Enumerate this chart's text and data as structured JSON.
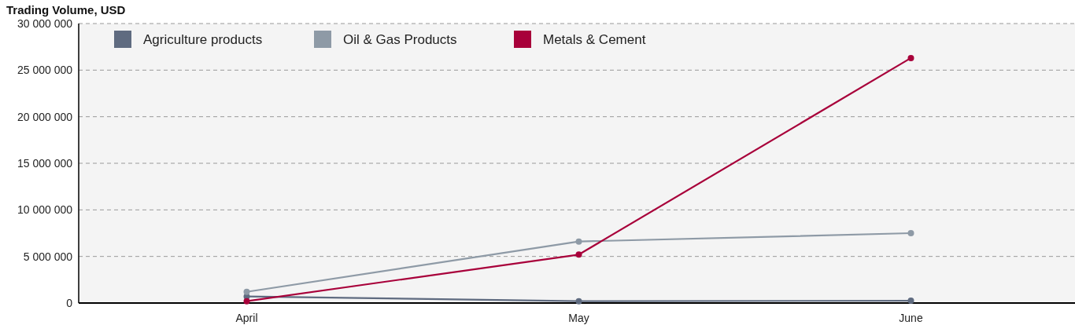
{
  "chart_data": {
    "type": "line",
    "title": "Trading Volume, USD",
    "categories": [
      "April",
      "May",
      "June"
    ],
    "series": [
      {
        "name": "Agriculture products",
        "color": "#5f6b80",
        "values": [
          700000,
          200000,
          250000
        ]
      },
      {
        "name": "Oil & Gas Products",
        "color": "#8e9aa6",
        "values": [
          1200000,
          6600000,
          7500000
        ]
      },
      {
        "name": "Metals & Cement",
        "color": "#a8003a",
        "values": [
          200000,
          5200000,
          26300000
        ]
      }
    ],
    "ylim": [
      0,
      30000000
    ],
    "yticks": [
      {
        "value": 0,
        "label": "0"
      },
      {
        "value": 5000000,
        "label": "5 000 000"
      },
      {
        "value": 10000000,
        "label": "10 000 000"
      },
      {
        "value": 15000000,
        "label": "15 000 000"
      },
      {
        "value": 20000000,
        "label": "20 000 000"
      },
      {
        "value": 25000000,
        "label": "25 000 000"
      },
      {
        "value": 30000000,
        "label": "30 000 000"
      }
    ],
    "grid": "y",
    "legend": "top left",
    "marker": "circle",
    "line_style": "solid"
  }
}
